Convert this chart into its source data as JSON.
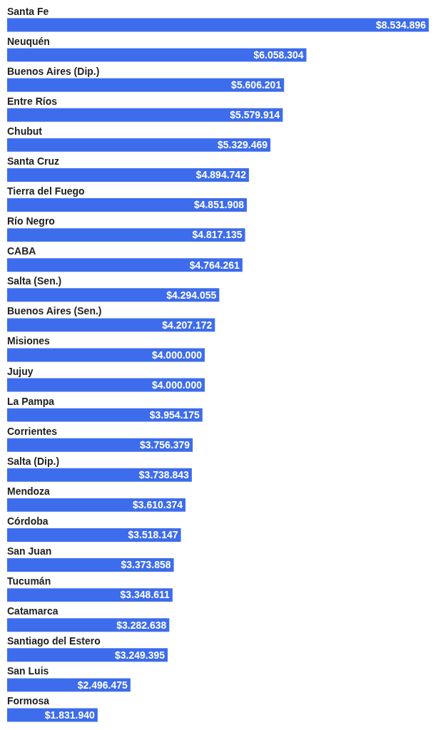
{
  "chart_data": {
    "type": "bar",
    "orientation": "horizontal",
    "categories": [
      "Santa Fe",
      "Neuquén",
      "Buenos Aires (Dip.)",
      "Entre Ríos",
      "Chubut",
      "Santa Cruz",
      "Tierra del Fuego",
      "Río Negro",
      "CABA",
      "Salta (Sen.)",
      "Buenos Aires (Sen.)",
      "Misiones",
      "Jujuy",
      "La Pampa",
      "Corrientes",
      "Salta (Dip.)",
      "Mendoza",
      "Córdoba",
      "San Juan",
      "Tucumán",
      "Catamarca",
      "Santiago del Estero",
      "San Luis",
      "Formosa"
    ],
    "values": [
      8534896,
      6058304,
      5606201,
      5579914,
      5329469,
      4894742,
      4851908,
      4817135,
      4764261,
      4294055,
      4207172,
      4000000,
      4000000,
      3954175,
      3756379,
      3738843,
      3610374,
      3518147,
      3373858,
      3348611,
      3282638,
      3249395,
      2496475,
      1831940
    ],
    "value_labels": [
      "$8.534.896",
      "$6.058.304",
      "$5.606.201",
      "$5.579.914",
      "$5.329.469",
      "$4.894.742",
      "$4.851.908",
      "$4.817.135",
      "$4.764.261",
      "$4.294.055",
      "$4.207.172",
      "$4.000.000",
      "$4.000.000",
      "$3.954.175",
      "$3.756.379",
      "$3.738.843",
      "$3.610.374",
      "$3.518.147",
      "$3.373.858",
      "$3.348.611",
      "$3.282.638",
      "$3.249.395",
      "$2.496.475",
      "$1.831.940"
    ],
    "color": "#3d6cec"
  }
}
